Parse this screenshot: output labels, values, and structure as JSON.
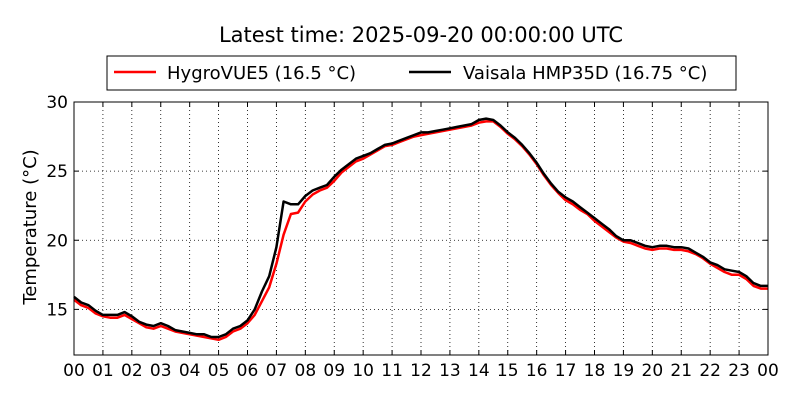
{
  "chart_data": {
    "type": "line",
    "title": "Latest time: 2025-09-20 00:00:00 UTC",
    "xlabel": "",
    "ylabel": "Temperature (°C)",
    "xlim": [
      0,
      24
    ],
    "ylim": [
      11.7,
      30
    ],
    "xticks": [
      0,
      1,
      2,
      3,
      4,
      5,
      6,
      7,
      8,
      9,
      10,
      11,
      12,
      13,
      14,
      15,
      16,
      17,
      18,
      19,
      20,
      21,
      22,
      23,
      24
    ],
    "xtick_labels": [
      "00",
      "01",
      "02",
      "03",
      "04",
      "05",
      "06",
      "07",
      "08",
      "09",
      "10",
      "11",
      "12",
      "13",
      "14",
      "15",
      "16",
      "17",
      "18",
      "19",
      "20",
      "21",
      "22",
      "23",
      "00"
    ],
    "yticks": [
      15,
      20,
      25,
      30
    ],
    "ytick_labels": [
      "15",
      "20",
      "25",
      "30"
    ],
    "grid": true,
    "legend_position": "top-center",
    "series": [
      {
        "name": "HygroVUE5 (16.5 °C)",
        "color": "#ff0000",
        "x": [
          0,
          0.25,
          0.5,
          0.75,
          1,
          1.25,
          1.5,
          1.75,
          2,
          2.25,
          2.5,
          2.75,
          3,
          3.25,
          3.5,
          3.75,
          4,
          4.25,
          4.5,
          4.75,
          5,
          5.25,
          5.5,
          5.75,
          6,
          6.25,
          6.5,
          6.75,
          7,
          7.25,
          7.5,
          7.75,
          8,
          8.25,
          8.5,
          8.75,
          9,
          9.25,
          9.5,
          9.75,
          10,
          10.25,
          10.5,
          10.75,
          11,
          11.25,
          11.5,
          11.75,
          12,
          12.25,
          12.5,
          12.75,
          13,
          13.25,
          13.5,
          13.75,
          14,
          14.25,
          14.5,
          14.75,
          15,
          15.25,
          15.5,
          15.75,
          16,
          16.25,
          16.5,
          16.75,
          17,
          17.25,
          17.5,
          17.75,
          18,
          18.25,
          18.5,
          18.75,
          19,
          19.25,
          19.5,
          19.75,
          20,
          20.25,
          20.5,
          20.75,
          21,
          21.25,
          21.5,
          21.75,
          22,
          22.25,
          22.5,
          22.75,
          23,
          23.25,
          23.5,
          23.75,
          24
        ],
        "y": [
          15.7,
          15.3,
          15.1,
          14.7,
          14.5,
          14.4,
          14.4,
          14.6,
          14.3,
          14.0,
          13.7,
          13.6,
          13.8,
          13.6,
          13.4,
          13.3,
          13.2,
          13.1,
          13.0,
          12.9,
          12.8,
          13.0,
          13.4,
          13.6,
          14.0,
          14.6,
          15.6,
          16.6,
          18.3,
          20.4,
          21.9,
          22.0,
          22.8,
          23.3,
          23.6,
          23.8,
          24.3,
          24.9,
          25.3,
          25.7,
          25.9,
          26.2,
          26.5,
          26.8,
          26.9,
          27.1,
          27.3,
          27.5,
          27.6,
          27.7,
          27.8,
          27.9,
          28.0,
          28.1,
          28.2,
          28.3,
          28.5,
          28.6,
          28.6,
          28.2,
          27.7,
          27.3,
          26.8,
          26.2,
          25.5,
          24.7,
          24.0,
          23.4,
          22.9,
          22.6,
          22.2,
          21.9,
          21.4,
          21.0,
          20.6,
          20.2,
          19.9,
          19.8,
          19.6,
          19.4,
          19.3,
          19.4,
          19.4,
          19.3,
          19.3,
          19.2,
          19.0,
          18.7,
          18.3,
          18.0,
          17.7,
          17.5,
          17.5,
          17.2,
          16.7,
          16.5,
          16.5
        ]
      },
      {
        "name": "Vaisala HMP35D (16.75 °C)",
        "color": "#000000",
        "x": [
          0,
          0.25,
          0.5,
          0.75,
          1,
          1.25,
          1.5,
          1.75,
          2,
          2.25,
          2.5,
          2.75,
          3,
          3.25,
          3.5,
          3.75,
          4,
          4.25,
          4.5,
          4.75,
          5,
          5.25,
          5.5,
          5.75,
          6,
          6.25,
          6.5,
          6.75,
          7,
          7.25,
          7.5,
          7.75,
          8,
          8.25,
          8.5,
          8.75,
          9,
          9.25,
          9.5,
          9.75,
          10,
          10.25,
          10.5,
          10.75,
          11,
          11.25,
          11.5,
          11.75,
          12,
          12.25,
          12.5,
          12.75,
          13,
          13.25,
          13.5,
          13.75,
          14,
          14.25,
          14.5,
          14.75,
          15,
          15.25,
          15.5,
          15.75,
          16,
          16.25,
          16.5,
          16.75,
          17,
          17.25,
          17.5,
          17.75,
          18,
          18.25,
          18.5,
          18.75,
          19,
          19.25,
          19.5,
          19.75,
          20,
          20.25,
          20.5,
          20.75,
          21,
          21.25,
          21.5,
          21.75,
          22,
          22.25,
          22.5,
          22.75,
          23,
          23.25,
          23.5,
          23.75,
          24
        ],
        "y": [
          15.9,
          15.5,
          15.3,
          14.9,
          14.6,
          14.6,
          14.6,
          14.8,
          14.5,
          14.1,
          13.9,
          13.8,
          14.0,
          13.8,
          13.5,
          13.4,
          13.3,
          13.2,
          13.2,
          13.0,
          13.0,
          13.2,
          13.6,
          13.8,
          14.2,
          15.0,
          16.3,
          17.4,
          19.5,
          22.8,
          22.6,
          22.6,
          23.2,
          23.6,
          23.8,
          24.0,
          24.6,
          25.1,
          25.5,
          25.9,
          26.1,
          26.3,
          26.6,
          26.9,
          27.0,
          27.2,
          27.4,
          27.6,
          27.8,
          27.8,
          27.9,
          28.0,
          28.1,
          28.2,
          28.3,
          28.4,
          28.7,
          28.8,
          28.7,
          28.3,
          27.8,
          27.4,
          26.9,
          26.3,
          25.6,
          24.8,
          24.1,
          23.5,
          23.1,
          22.8,
          22.4,
          22.0,
          21.6,
          21.2,
          20.8,
          20.3,
          20.0,
          20.0,
          19.8,
          19.6,
          19.5,
          19.6,
          19.6,
          19.5,
          19.5,
          19.4,
          19.1,
          18.8,
          18.4,
          18.2,
          17.9,
          17.8,
          17.7,
          17.4,
          16.9,
          16.7,
          16.7
        ]
      }
    ]
  }
}
